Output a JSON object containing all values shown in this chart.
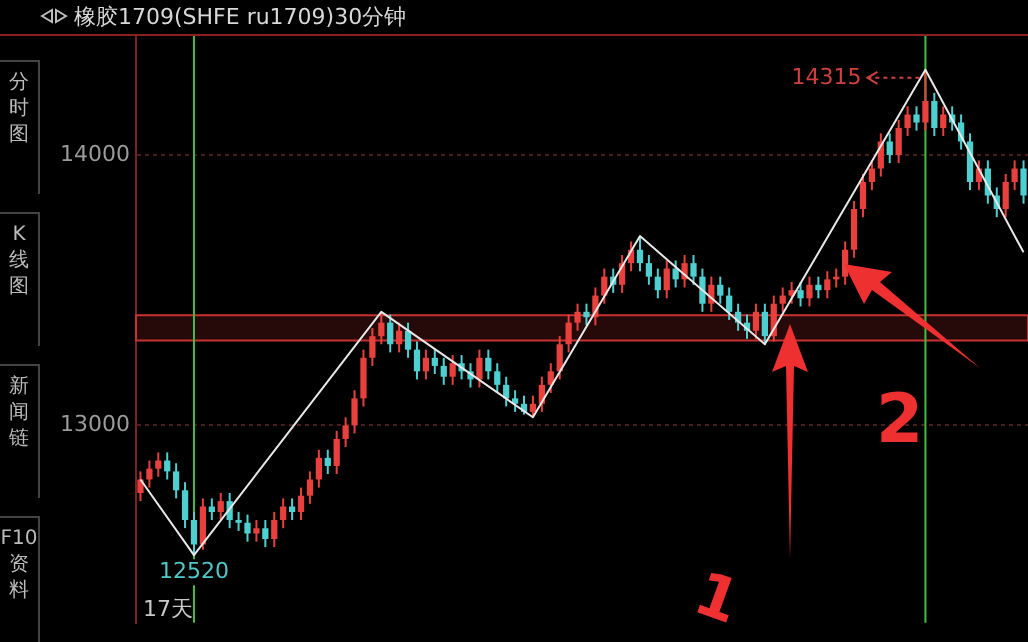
{
  "chart_data": {
    "type": "candlestick",
    "title": "橡胶1709(SHFE ru1709)30分钟",
    "categories": [
      null,
      null,
      null,
      null,
      null,
      null,
      null,
      null,
      null,
      null,
      null,
      null,
      null,
      null,
      null,
      null,
      null,
      null,
      null,
      null,
      null,
      null,
      null,
      null,
      null,
      null,
      null,
      null,
      null,
      null,
      null,
      null,
      null,
      null,
      null,
      null,
      null,
      null,
      null,
      null,
      null,
      null,
      null,
      null,
      null,
      null,
      null,
      null,
      null,
      null,
      null,
      null,
      null,
      null,
      null,
      null,
      null,
      null,
      null,
      null,
      null,
      null,
      null,
      null,
      null,
      null,
      null,
      null,
      null,
      null,
      null,
      null,
      null,
      null,
      null,
      null,
      null,
      null,
      null,
      null,
      null,
      null,
      null,
      null,
      null,
      null,
      null,
      null,
      null,
      null,
      null,
      null,
      null,
      null,
      null,
      null,
      null,
      null,
      null,
      null
    ],
    "ohlc": [
      [
        12750,
        12830,
        12720,
        12800
      ],
      [
        12800,
        12870,
        12770,
        12840
      ],
      [
        12840,
        12900,
        12810,
        12870
      ],
      [
        12870,
        12900,
        12800,
        12830
      ],
      [
        12830,
        12860,
        12730,
        12760
      ],
      [
        12760,
        12790,
        12620,
        12650
      ],
      [
        12650,
        12680,
        12520,
        12560
      ],
      [
        12560,
        12730,
        12540,
        12700
      ],
      [
        12700,
        12730,
        12650,
        12680
      ],
      [
        12680,
        12750,
        12650,
        12720
      ],
      [
        12720,
        12750,
        12620,
        12650
      ],
      [
        12650,
        12680,
        12610,
        12640
      ],
      [
        12640,
        12670,
        12570,
        12600
      ],
      [
        12600,
        12650,
        12570,
        12620
      ],
      [
        12620,
        12650,
        12550,
        12580
      ],
      [
        12580,
        12680,
        12550,
        12650
      ],
      [
        12650,
        12730,
        12620,
        12700
      ],
      [
        12700,
        12730,
        12650,
        12680
      ],
      [
        12680,
        12770,
        12650,
        12740
      ],
      [
        12740,
        12830,
        12710,
        12800
      ],
      [
        12800,
        12910,
        12770,
        12880
      ],
      [
        12880,
        12910,
        12820,
        12850
      ],
      [
        12850,
        12980,
        12820,
        12950
      ],
      [
        12950,
        13030,
        12920,
        13000
      ],
      [
        13000,
        13130,
        12970,
        13100
      ],
      [
        13100,
        13280,
        13070,
        13250
      ],
      [
        13250,
        13360,
        13220,
        13330
      ],
      [
        13330,
        13420,
        13300,
        13380
      ],
      [
        13380,
        13410,
        13270,
        13300
      ],
      [
        13300,
        13380,
        13270,
        13350
      ],
      [
        13350,
        13380,
        13250,
        13280
      ],
      [
        13280,
        13310,
        13170,
        13200
      ],
      [
        13200,
        13280,
        13170,
        13250
      ],
      [
        13250,
        13280,
        13190,
        13220
      ],
      [
        13220,
        13250,
        13150,
        13180
      ],
      [
        13180,
        13260,
        13150,
        13230
      ],
      [
        13230,
        13260,
        13170,
        13200
      ],
      [
        13200,
        13230,
        13140,
        13170
      ],
      [
        13170,
        13280,
        13140,
        13250
      ],
      [
        13250,
        13280,
        13170,
        13200
      ],
      [
        13200,
        13230,
        13120,
        13150
      ],
      [
        13150,
        13180,
        13070,
        13100
      ],
      [
        13100,
        13130,
        13050,
        13080
      ],
      [
        13080,
        13110,
        13040,
        13050
      ],
      [
        13050,
        13110,
        13030,
        13080
      ],
      [
        13080,
        13180,
        13050,
        13150
      ],
      [
        13150,
        13230,
        13120,
        13200
      ],
      [
        13200,
        13330,
        13170,
        13300
      ],
      [
        13300,
        13410,
        13270,
        13380
      ],
      [
        13380,
        13450,
        13350,
        13420
      ],
      [
        13420,
        13450,
        13370,
        13400
      ],
      [
        13400,
        13510,
        13370,
        13480
      ],
      [
        13480,
        13580,
        13450,
        13550
      ],
      [
        13550,
        13580,
        13490,
        13520
      ],
      [
        13520,
        13630,
        13490,
        13600
      ],
      [
        13600,
        13680,
        13570,
        13650
      ],
      [
        13650,
        13700,
        13570,
        13600
      ],
      [
        13600,
        13630,
        13520,
        13550
      ],
      [
        13550,
        13580,
        13470,
        13500
      ],
      [
        13500,
        13610,
        13470,
        13580
      ],
      [
        13580,
        13610,
        13510,
        13540
      ],
      [
        13540,
        13630,
        13510,
        13600
      ],
      [
        13600,
        13630,
        13520,
        13550
      ],
      [
        13550,
        13580,
        13420,
        13450
      ],
      [
        13450,
        13550,
        13420,
        13520
      ],
      [
        13520,
        13550,
        13450,
        13480
      ],
      [
        13480,
        13510,
        13390,
        13420
      ],
      [
        13420,
        13450,
        13350,
        13380
      ],
      [
        13380,
        13410,
        13320,
        13350
      ],
      [
        13350,
        13450,
        13320,
        13420
      ],
      [
        13420,
        13450,
        13300,
        13330
      ],
      [
        13330,
        13480,
        13310,
        13450
      ],
      [
        13450,
        13510,
        13420,
        13480
      ],
      [
        13480,
        13530,
        13450,
        13500
      ],
      [
        13500,
        13530,
        13440,
        13470
      ],
      [
        13470,
        13550,
        13440,
        13520
      ],
      [
        13520,
        13550,
        13470,
        13500
      ],
      [
        13500,
        13570,
        13470,
        13540
      ],
      [
        13540,
        13580,
        13510,
        13550
      ],
      [
        13550,
        13680,
        13520,
        13650
      ],
      [
        13650,
        13830,
        13620,
        13800
      ],
      [
        13800,
        13930,
        13770,
        13900
      ],
      [
        13900,
        13980,
        13870,
        13950
      ],
      [
        13950,
        14080,
        13920,
        14050
      ],
      [
        14050,
        14080,
        13970,
        14000
      ],
      [
        14000,
        14130,
        13970,
        14100
      ],
      [
        14100,
        14180,
        14070,
        14150
      ],
      [
        14150,
        14180,
        14090,
        14120
      ],
      [
        14120,
        14315,
        14090,
        14200
      ],
      [
        14200,
        14230,
        14070,
        14100
      ],
      [
        14100,
        14180,
        14070,
        14150
      ],
      [
        14150,
        14180,
        14090,
        14120
      ],
      [
        14120,
        14150,
        14020,
        14050
      ],
      [
        14050,
        14080,
        13870,
        13900
      ],
      [
        13900,
        13980,
        13870,
        13950
      ],
      [
        13950,
        13980,
        13820,
        13850
      ],
      [
        13850,
        13880,
        13770,
        13800
      ],
      [
        13800,
        13930,
        13770,
        13900
      ],
      [
        13900,
        13980,
        13870,
        13950
      ],
      [
        13950,
        13980,
        13820,
        13850
      ]
    ],
    "series": [
      {
        "type": "line",
        "color": "#e8e8e8",
        "values": [
          12800,
          null,
          null,
          null,
          null,
          null,
          12520,
          null,
          null,
          null,
          null,
          null,
          null,
          null,
          null,
          null,
          null,
          null,
          null,
          null,
          null,
          null,
          null,
          null,
          null,
          null,
          null,
          13420,
          null,
          null,
          null,
          null,
          null,
          null,
          null,
          null,
          null,
          null,
          null,
          null,
          null,
          null,
          null,
          null,
          13030,
          null,
          null,
          null,
          null,
          null,
          null,
          null,
          null,
          null,
          null,
          null,
          13700,
          null,
          null,
          null,
          null,
          null,
          null,
          null,
          null,
          null,
          null,
          null,
          null,
          null,
          13300,
          null,
          null,
          null,
          null,
          null,
          null,
          null,
          null,
          null,
          null,
          null,
          null,
          null,
          null,
          null,
          null,
          null,
          14315,
          null,
          null,
          null,
          null,
          null,
          null,
          null,
          null,
          null,
          null,
          13640
        ]
      }
    ],
    "ylim": [
      12270,
      14440
    ],
    "yticks": [
      13000,
      14000
    ],
    "grid": "y",
    "legend": false,
    "tick_labels": "y",
    "marker": "none",
    "bands": [
      {
        "axis": "y",
        "from": 13314,
        "to": 13407,
        "color": "#c83232"
      }
    ],
    "annotations": [
      "14315",
      {
        "text": "12520",
        "y": 12520
      },
      "17天",
      "1",
      "2",
      "分时图",
      "K线图",
      "新闻链",
      "F10资料"
    ]
  }
}
